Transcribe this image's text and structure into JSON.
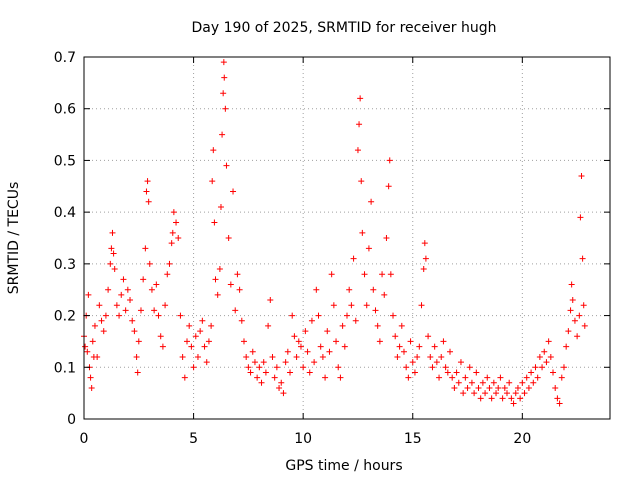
{
  "chart_data": {
    "type": "scatter",
    "title": "Day 190 of 2025, SRMTID for receiver hugh",
    "xlabel": "GPS time / hours",
    "ylabel": "SRMTID / TECUs",
    "xlim": [
      0,
      24
    ],
    "ylim": [
      0,
      0.7
    ],
    "x_ticks": [
      0,
      5,
      10,
      15,
      20
    ],
    "y_ticks": [
      0,
      0.1,
      0.2,
      0.3,
      0.4,
      0.5,
      0.6,
      0.7
    ],
    "x_tick_labels": [
      "0",
      "5",
      "10",
      "15",
      "20"
    ],
    "y_tick_labels": [
      "0",
      "0.1",
      "0.2",
      "0.3",
      "0.4",
      "0.5",
      "0.6",
      "0.7"
    ],
    "grid": true,
    "marker": "+",
    "color": "#ff0000",
    "series": [
      {
        "name": "SRMTID",
        "points": [
          [
            0.0,
            0.16
          ],
          [
            0.05,
            0.14
          ],
          [
            0.1,
            0.2
          ],
          [
            0.15,
            0.13
          ],
          [
            0.2,
            0.24
          ],
          [
            0.25,
            0.1
          ],
          [
            0.3,
            0.08
          ],
          [
            0.35,
            0.06
          ],
          [
            0.4,
            0.15
          ],
          [
            0.45,
            0.12
          ],
          [
            0.5,
            0.18
          ],
          [
            0.6,
            0.12
          ],
          [
            0.7,
            0.22
          ],
          [
            0.8,
            0.19
          ],
          [
            0.9,
            0.17
          ],
          [
            1.0,
            0.2
          ],
          [
            1.1,
            0.25
          ],
          [
            1.2,
            0.3
          ],
          [
            1.25,
            0.33
          ],
          [
            1.3,
            0.36
          ],
          [
            1.35,
            0.32
          ],
          [
            1.4,
            0.29
          ],
          [
            1.5,
            0.22
          ],
          [
            1.6,
            0.2
          ],
          [
            1.7,
            0.24
          ],
          [
            1.8,
            0.27
          ],
          [
            1.9,
            0.21
          ],
          [
            2.0,
            0.25
          ],
          [
            2.1,
            0.23
          ],
          [
            2.2,
            0.19
          ],
          [
            2.3,
            0.17
          ],
          [
            2.4,
            0.12
          ],
          [
            2.45,
            0.09
          ],
          [
            2.5,
            0.15
          ],
          [
            2.6,
            0.21
          ],
          [
            2.7,
            0.27
          ],
          [
            2.8,
            0.33
          ],
          [
            2.85,
            0.44
          ],
          [
            2.9,
            0.46
          ],
          [
            2.95,
            0.42
          ],
          [
            3.0,
            0.3
          ],
          [
            3.1,
            0.25
          ],
          [
            3.2,
            0.21
          ],
          [
            3.3,
            0.26
          ],
          [
            3.4,
            0.2
          ],
          [
            3.5,
            0.16
          ],
          [
            3.6,
            0.14
          ],
          [
            3.7,
            0.22
          ],
          [
            3.8,
            0.28
          ],
          [
            3.9,
            0.3
          ],
          [
            4.0,
            0.34
          ],
          [
            4.05,
            0.36
          ],
          [
            4.1,
            0.4
          ],
          [
            4.2,
            0.38
          ],
          [
            4.3,
            0.35
          ],
          [
            4.4,
            0.2
          ],
          [
            4.5,
            0.12
          ],
          [
            4.6,
            0.08
          ],
          [
            4.7,
            0.15
          ],
          [
            4.8,
            0.18
          ],
          [
            4.9,
            0.14
          ],
          [
            5.0,
            0.1
          ],
          [
            5.1,
            0.16
          ],
          [
            5.2,
            0.12
          ],
          [
            5.3,
            0.17
          ],
          [
            5.4,
            0.19
          ],
          [
            5.5,
            0.14
          ],
          [
            5.6,
            0.11
          ],
          [
            5.7,
            0.15
          ],
          [
            5.8,
            0.18
          ],
          [
            5.85,
            0.46
          ],
          [
            5.9,
            0.52
          ],
          [
            5.95,
            0.38
          ],
          [
            6.0,
            0.27
          ],
          [
            6.1,
            0.24
          ],
          [
            6.2,
            0.29
          ],
          [
            6.25,
            0.41
          ],
          [
            6.3,
            0.55
          ],
          [
            6.35,
            0.63
          ],
          [
            6.38,
            0.69
          ],
          [
            6.4,
            0.66
          ],
          [
            6.45,
            0.6
          ],
          [
            6.5,
            0.49
          ],
          [
            6.6,
            0.35
          ],
          [
            6.7,
            0.26
          ],
          [
            6.8,
            0.44
          ],
          [
            6.9,
            0.21
          ],
          [
            7.0,
            0.28
          ],
          [
            7.1,
            0.25
          ],
          [
            7.2,
            0.19
          ],
          [
            7.3,
            0.15
          ],
          [
            7.4,
            0.12
          ],
          [
            7.5,
            0.1
          ],
          [
            7.6,
            0.09
          ],
          [
            7.7,
            0.13
          ],
          [
            7.8,
            0.11
          ],
          [
            7.9,
            0.08
          ],
          [
            8.0,
            0.1
          ],
          [
            8.1,
            0.07
          ],
          [
            8.2,
            0.11
          ],
          [
            8.3,
            0.09
          ],
          [
            8.4,
            0.18
          ],
          [
            8.5,
            0.23
          ],
          [
            8.6,
            0.12
          ],
          [
            8.7,
            0.08
          ],
          [
            8.8,
            0.1
          ],
          [
            8.9,
            0.06
          ],
          [
            9.0,
            0.07
          ],
          [
            9.1,
            0.05
          ],
          [
            9.2,
            0.11
          ],
          [
            9.3,
            0.13
          ],
          [
            9.4,
            0.09
          ],
          [
            9.5,
            0.2
          ],
          [
            9.6,
            0.16
          ],
          [
            9.7,
            0.12
          ],
          [
            9.8,
            0.15
          ],
          [
            9.9,
            0.14
          ],
          [
            10.0,
            0.1
          ],
          [
            10.1,
            0.17
          ],
          [
            10.2,
            0.13
          ],
          [
            10.3,
            0.09
          ],
          [
            10.4,
            0.19
          ],
          [
            10.5,
            0.11
          ],
          [
            10.6,
            0.25
          ],
          [
            10.7,
            0.2
          ],
          [
            10.8,
            0.14
          ],
          [
            10.9,
            0.12
          ],
          [
            11.0,
            0.08
          ],
          [
            11.1,
            0.17
          ],
          [
            11.2,
            0.13
          ],
          [
            11.3,
            0.28
          ],
          [
            11.4,
            0.22
          ],
          [
            11.5,
            0.15
          ],
          [
            11.6,
            0.1
          ],
          [
            11.7,
            0.08
          ],
          [
            11.8,
            0.18
          ],
          [
            11.9,
            0.14
          ],
          [
            12.0,
            0.2
          ],
          [
            12.1,
            0.25
          ],
          [
            12.2,
            0.22
          ],
          [
            12.3,
            0.31
          ],
          [
            12.4,
            0.19
          ],
          [
            12.5,
            0.52
          ],
          [
            12.55,
            0.57
          ],
          [
            12.6,
            0.62
          ],
          [
            12.65,
            0.46
          ],
          [
            12.7,
            0.36
          ],
          [
            12.8,
            0.28
          ],
          [
            12.9,
            0.22
          ],
          [
            13.0,
            0.33
          ],
          [
            13.1,
            0.42
          ],
          [
            13.2,
            0.25
          ],
          [
            13.3,
            0.21
          ],
          [
            13.4,
            0.18
          ],
          [
            13.5,
            0.15
          ],
          [
            13.6,
            0.28
          ],
          [
            13.7,
            0.24
          ],
          [
            13.8,
            0.35
          ],
          [
            13.9,
            0.45
          ],
          [
            13.95,
            0.5
          ],
          [
            14.0,
            0.28
          ],
          [
            14.1,
            0.2
          ],
          [
            14.2,
            0.16
          ],
          [
            14.3,
            0.12
          ],
          [
            14.4,
            0.14
          ],
          [
            14.5,
            0.18
          ],
          [
            14.6,
            0.13
          ],
          [
            14.7,
            0.1
          ],
          [
            14.8,
            0.08
          ],
          [
            14.9,
            0.15
          ],
          [
            15.0,
            0.11
          ],
          [
            15.1,
            0.09
          ],
          [
            15.2,
            0.12
          ],
          [
            15.3,
            0.14
          ],
          [
            15.4,
            0.22
          ],
          [
            15.5,
            0.29
          ],
          [
            15.55,
            0.34
          ],
          [
            15.6,
            0.31
          ],
          [
            15.7,
            0.16
          ],
          [
            15.8,
            0.12
          ],
          [
            15.9,
            0.1
          ],
          [
            16.0,
            0.14
          ],
          [
            16.1,
            0.11
          ],
          [
            16.2,
            0.08
          ],
          [
            16.3,
            0.12
          ],
          [
            16.4,
            0.15
          ],
          [
            16.5,
            0.1
          ],
          [
            16.6,
            0.09
          ],
          [
            16.7,
            0.13
          ],
          [
            16.8,
            0.08
          ],
          [
            16.9,
            0.06
          ],
          [
            17.0,
            0.09
          ],
          [
            17.1,
            0.07
          ],
          [
            17.2,
            0.11
          ],
          [
            17.3,
            0.05
          ],
          [
            17.4,
            0.08
          ],
          [
            17.5,
            0.06
          ],
          [
            17.6,
            0.1
          ],
          [
            17.7,
            0.07
          ],
          [
            17.8,
            0.05
          ],
          [
            17.9,
            0.09
          ],
          [
            18.0,
            0.06
          ],
          [
            18.1,
            0.04
          ],
          [
            18.2,
            0.07
          ],
          [
            18.3,
            0.05
          ],
          [
            18.4,
            0.08
          ],
          [
            18.5,
            0.06
          ],
          [
            18.6,
            0.04
          ],
          [
            18.7,
            0.07
          ],
          [
            18.8,
            0.05
          ],
          [
            18.9,
            0.06
          ],
          [
            19.0,
            0.08
          ],
          [
            19.1,
            0.04
          ],
          [
            19.2,
            0.06
          ],
          [
            19.3,
            0.05
          ],
          [
            19.4,
            0.07
          ],
          [
            19.5,
            0.04
          ],
          [
            19.6,
            0.03
          ],
          [
            19.7,
            0.05
          ],
          [
            19.8,
            0.06
          ],
          [
            19.9,
            0.04
          ],
          [
            20.0,
            0.07
          ],
          [
            20.1,
            0.05
          ],
          [
            20.2,
            0.08
          ],
          [
            20.3,
            0.06
          ],
          [
            20.4,
            0.09
          ],
          [
            20.5,
            0.07
          ],
          [
            20.6,
            0.1
          ],
          [
            20.7,
            0.08
          ],
          [
            20.8,
            0.12
          ],
          [
            20.9,
            0.1
          ],
          [
            21.0,
            0.13
          ],
          [
            21.1,
            0.11
          ],
          [
            21.2,
            0.15
          ],
          [
            21.3,
            0.12
          ],
          [
            21.4,
            0.09
          ],
          [
            21.5,
            0.06
          ],
          [
            21.6,
            0.04
          ],
          [
            21.7,
            0.03
          ],
          [
            21.8,
            0.08
          ],
          [
            21.9,
            0.1
          ],
          [
            22.0,
            0.14
          ],
          [
            22.1,
            0.17
          ],
          [
            22.2,
            0.21
          ],
          [
            22.25,
            0.26
          ],
          [
            22.3,
            0.23
          ],
          [
            22.4,
            0.19
          ],
          [
            22.5,
            0.16
          ],
          [
            22.6,
            0.2
          ],
          [
            22.65,
            0.39
          ],
          [
            22.7,
            0.47
          ],
          [
            22.75,
            0.31
          ],
          [
            22.8,
            0.22
          ],
          [
            22.85,
            0.18
          ]
        ]
      }
    ]
  }
}
